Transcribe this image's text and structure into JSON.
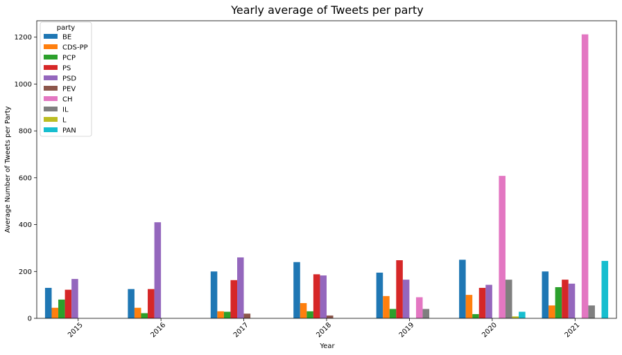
{
  "chart_data": {
    "type": "bar",
    "title": "Yearly average of Tweets per party",
    "xlabel": "Year",
    "ylabel": "Average Number of Tweets per Party",
    "categories": [
      "2015",
      "2016",
      "2017",
      "2018",
      "2019",
      "2020",
      "2021"
    ],
    "yticks": [
      0,
      200,
      400,
      600,
      800,
      1000,
      1200
    ],
    "ylim": [
      0,
      1270
    ],
    "grid": false,
    "legend": {
      "title": "party",
      "placement": "top-left"
    },
    "series": [
      {
        "name": "BE",
        "color": "#1f77b4",
        "values": [
          130,
          125,
          200,
          240,
          195,
          250,
          200
        ]
      },
      {
        "name": "CDS-PP",
        "color": "#ff7f0e",
        "values": [
          45,
          45,
          30,
          65,
          95,
          100,
          55
        ]
      },
      {
        "name": "PCP",
        "color": "#2ca02c",
        "values": [
          80,
          22,
          28,
          30,
          40,
          18,
          133
        ]
      },
      {
        "name": "PS",
        "color": "#d62728",
        "values": [
          122,
          125,
          163,
          188,
          248,
          130,
          165
        ]
      },
      {
        "name": "PSD",
        "color": "#9467bd",
        "values": [
          168,
          410,
          260,
          183,
          165,
          143,
          148
        ]
      },
      {
        "name": "PEV",
        "color": "#8c564b",
        "values": [
          null,
          null,
          20,
          12,
          null,
          null,
          null
        ]
      },
      {
        "name": "CH",
        "color": "#e377c2",
        "values": [
          null,
          null,
          null,
          null,
          90,
          608,
          1212
        ]
      },
      {
        "name": "IL",
        "color": "#7f7f7f",
        "values": [
          null,
          null,
          null,
          null,
          40,
          165,
          55
        ]
      },
      {
        "name": "L",
        "color": "#bcbd22",
        "values": [
          null,
          null,
          null,
          null,
          null,
          8,
          null
        ]
      },
      {
        "name": "PAN",
        "color": "#17becf",
        "values": [
          null,
          null,
          null,
          null,
          null,
          28,
          245
        ]
      }
    ]
  }
}
